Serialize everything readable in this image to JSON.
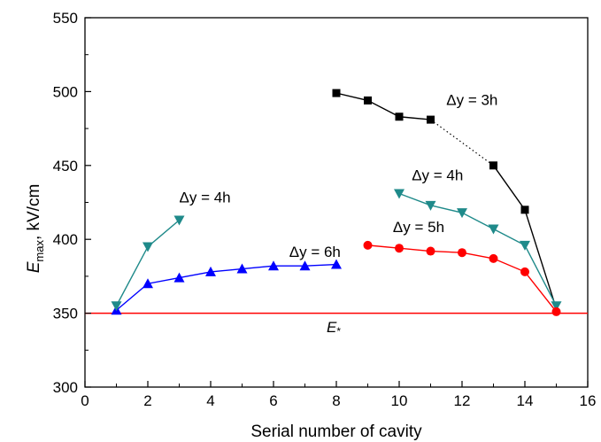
{
  "chart_data": {
    "type": "line",
    "xlabel": "Serial number of cavity",
    "ylabel_main": "E",
    "ylabel_sub": "max",
    "ylabel_rest": ", kV/cm",
    "xlim": [
      0,
      16
    ],
    "ylim": [
      300,
      550
    ],
    "xticks": [
      0,
      2,
      4,
      6,
      8,
      10,
      12,
      14,
      16
    ],
    "yticks": [
      300,
      350,
      400,
      450,
      500,
      550
    ],
    "grid": false,
    "reference_line": {
      "y": 350,
      "color": "#ff0000",
      "label_main": "E",
      "label_sub": "*"
    },
    "series": [
      {
        "key": "dy3h",
        "color": "#000000",
        "marker": "square",
        "segments": [
          {
            "style": "solid",
            "points": [
              [
                8,
                499
              ],
              [
                9,
                494
              ],
              [
                10,
                483
              ],
              [
                11,
                481
              ]
            ]
          },
          {
            "style": "dotted",
            "points": [
              [
                11,
                481
              ],
              [
                13,
                450
              ]
            ]
          },
          {
            "style": "solid",
            "points": [
              [
                13,
                450
              ],
              [
                14,
                420
              ],
              [
                15,
                353
              ]
            ]
          }
        ],
        "marker_points": [
          [
            8,
            499
          ],
          [
            9,
            494
          ],
          [
            10,
            483
          ],
          [
            11,
            481
          ],
          [
            13,
            450
          ],
          [
            14,
            420
          ]
        ]
      },
      {
        "key": "dy4h_right",
        "color": "#1f8a8a",
        "marker": "triangle-down",
        "segments": [
          {
            "style": "solid",
            "points": [
              [
                10,
                431
              ],
              [
                11,
                423
              ],
              [
                12,
                418
              ],
              [
                13,
                407
              ],
              [
                14,
                396
              ],
              [
                15,
                355
              ]
            ]
          }
        ],
        "marker_points": [
          [
            10,
            431
          ],
          [
            11,
            423
          ],
          [
            12,
            418
          ],
          [
            13,
            407
          ],
          [
            14,
            396
          ],
          [
            15,
            355
          ]
        ]
      },
      {
        "key": "dy5h",
        "color": "#ff0000",
        "marker": "circle",
        "segments": [
          {
            "style": "solid",
            "points": [
              [
                9,
                396
              ],
              [
                10,
                394
              ],
              [
                11,
                392
              ],
              [
                12,
                391
              ],
              [
                13,
                387
              ],
              [
                14,
                378
              ],
              [
                15,
                351
              ]
            ]
          }
        ],
        "marker_points": [
          [
            9,
            396
          ],
          [
            10,
            394
          ],
          [
            11,
            392
          ],
          [
            12,
            391
          ],
          [
            13,
            387
          ],
          [
            14,
            378
          ],
          [
            15,
            351
          ]
        ]
      },
      {
        "key": "dy6h",
        "color": "#0000ff",
        "marker": "triangle-up",
        "segments": [
          {
            "style": "solid",
            "points": [
              [
                1,
                352
              ],
              [
                2,
                370
              ],
              [
                3,
                374
              ],
              [
                4,
                378
              ],
              [
                5,
                380
              ],
              [
                6,
                382
              ],
              [
                7,
                382
              ],
              [
                8,
                383
              ]
            ]
          }
        ],
        "marker_points": [
          [
            1,
            352
          ],
          [
            2,
            370
          ],
          [
            3,
            374
          ],
          [
            4,
            378
          ],
          [
            5,
            380
          ],
          [
            6,
            382
          ],
          [
            7,
            382
          ],
          [
            8,
            383
          ]
        ]
      },
      {
        "key": "dy4h_left",
        "color": "#1f8a8a",
        "marker": "triangle-down",
        "segments": [
          {
            "style": "solid",
            "points": [
              [
                1,
                355
              ],
              [
                2,
                395
              ],
              [
                3,
                413
              ]
            ]
          }
        ],
        "marker_points": [
          [
            1,
            355
          ],
          [
            2,
            395
          ],
          [
            3,
            413
          ]
        ]
      }
    ],
    "annotations": [
      {
        "key": "ann-dy3h",
        "text": "Δy = 3h",
        "x": 11.5,
        "y": 491
      },
      {
        "key": "ann-dy4h-right",
        "text": "Δy = 4h",
        "x": 10.4,
        "y": 440
      },
      {
        "key": "ann-dy5h",
        "text": "Δy = 5h",
        "x": 9.8,
        "y": 405
      },
      {
        "key": "ann-dy6h",
        "text": "Δy = 6h",
        "x": 6.5,
        "y": 388
      },
      {
        "key": "ann-dy4h-left",
        "text": "Δy = 4h",
        "x": 3.0,
        "y": 425
      }
    ]
  }
}
